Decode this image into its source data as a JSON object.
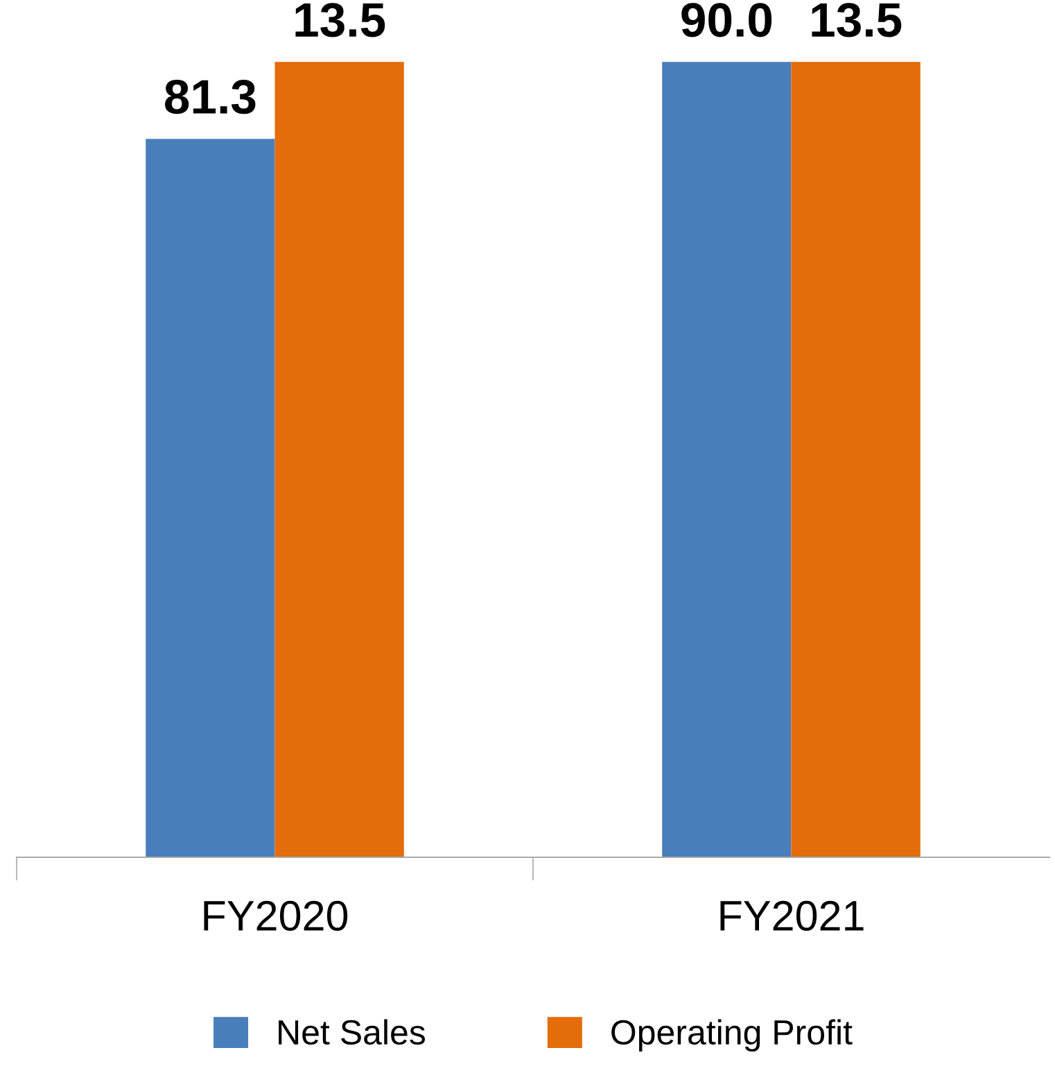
{
  "chart_data": {
    "type": "bar",
    "categories": [
      "FY2020",
      "FY2021"
    ],
    "series": [
      {
        "name": "Net Sales",
        "color": "#4a7ebb",
        "values": [
          81.3,
          90.0
        ],
        "value_labels": [
          "81.3",
          "90.0"
        ]
      },
      {
        "name": "Operating Profit",
        "color": "#e46c0a",
        "values": [
          13.5,
          13.5
        ],
        "axis": "y2",
        "value_labels": [
          "13.5",
          "13.5"
        ]
      }
    ],
    "tick_labels": "x",
    "grid": false,
    "legend": "bottom"
  }
}
